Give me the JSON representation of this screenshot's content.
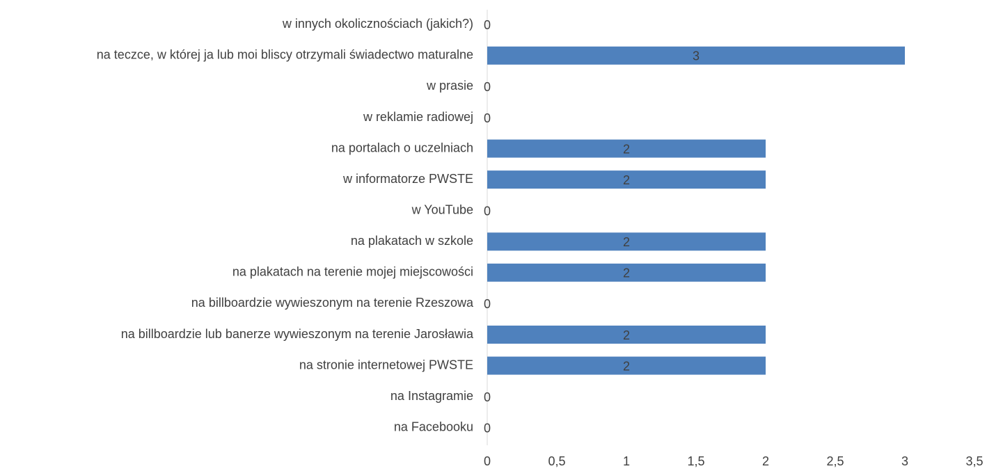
{
  "chart_data": {
    "type": "barh",
    "categories": [
      "w innych okolicznościach (jakich?)",
      "na teczce, w której ja lub moi bliscy otrzymali świadectwo maturalne",
      "w prasie",
      "w reklamie radiowej",
      "na portalach o uczelniach",
      "w informatorze PWSTE",
      "w YouTube",
      "na plakatach w szkole",
      "na plakatach na terenie mojej miejscowości",
      "na billboardzie wywieszonym na terenie Rzeszowa",
      "na billboardzie lub banerze wywieszonym na terenie Jarosławia",
      "na stronie internetowej PWSTE",
      "na Instagramie",
      "na Facebooku"
    ],
    "values": [
      0,
      3,
      0,
      0,
      2,
      2,
      0,
      2,
      2,
      0,
      2,
      2,
      0,
      0
    ],
    "color": "#4f81bd",
    "xlim": [
      0,
      3.5
    ],
    "xticks": [
      0,
      {
        "value": 0.5,
        "label": "0,5"
      },
      1,
      {
        "value": 1.5,
        "label": "1,5"
      },
      2,
      {
        "value": 2.5,
        "label": "2,5"
      },
      3,
      {
        "value": 3.5,
        "label": "3,5"
      }
    ],
    "grid": false
  }
}
